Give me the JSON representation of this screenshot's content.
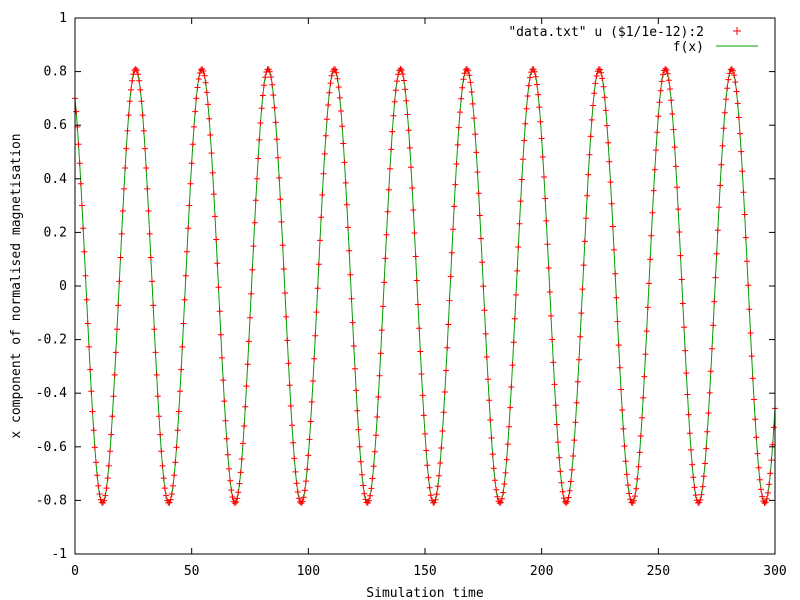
{
  "chart_data": {
    "type": "scatter",
    "title": "",
    "xlabel": "Simulation time",
    "ylabel": "x component of normalised magnetisation",
    "xlim": [
      0,
      300
    ],
    "ylim": [
      -1,
      1
    ],
    "x_ticks": [
      0,
      50,
      100,
      150,
      200,
      250,
      300
    ],
    "x_tick_labels": [
      "0",
      "50",
      "100",
      "150",
      "200",
      "250",
      "300"
    ],
    "y_ticks": [
      -1,
      -0.8,
      -0.6,
      -0.4,
      -0.2,
      0,
      0.2,
      0.4,
      0.6,
      0.8,
      1
    ],
    "y_tick_labels": [
      "-1",
      "-0.8",
      "-0.6",
      "-0.4",
      "-0.2",
      "0",
      "0.2",
      "0.4",
      "0.6",
      "0.8",
      "1"
    ],
    "grid": false,
    "legend_position": "top-right",
    "series": [
      {
        "name": "\"data.txt\" u ($1/1e-12):2",
        "kind": "points",
        "marker": "+",
        "color": "#ff0000",
        "model": {
          "amplitude": 0.81,
          "period": 28.38,
          "first_peak_x": 26.0,
          "x_start": 0,
          "x_end": 300,
          "x_step": 0.5
        }
      },
      {
        "name": "f(x)",
        "kind": "line",
        "color": "#00a000",
        "model": {
          "amplitude": 0.81,
          "period": 28.38,
          "first_peak_x": 26.0,
          "x_start": 0,
          "x_end": 300,
          "x_step": 0.25
        }
      }
    ],
    "legend": [
      {
        "label": "\"data.txt\" u ($1/1e-12):2",
        "symbol": "+",
        "color": "#ff0000"
      },
      {
        "label": "f(x)",
        "symbol": "line",
        "color": "#00a000"
      }
    ]
  }
}
